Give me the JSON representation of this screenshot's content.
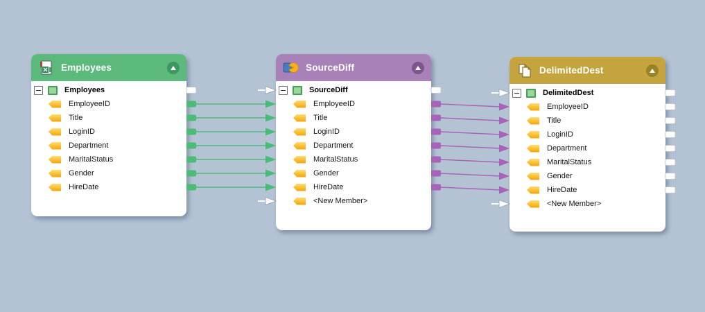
{
  "canvas": {
    "background_color": "#b4c3d4"
  },
  "components": [
    {
      "id": "employees",
      "title": "Employees",
      "icon": "excel-file-icon",
      "colors": {
        "header": "#5bb97b",
        "header_button": "#3f9663",
        "connector": "#49bd78"
      },
      "root_label": "Employees",
      "members": [
        "EmployeeID",
        "Title",
        "LoginID",
        "Department",
        "MaritalStatus",
        "Gender",
        "HireDate"
      ],
      "left_ports": [],
      "right_ports": [
        "white",
        "connected",
        "connected",
        "connected",
        "connected",
        "connected",
        "connected",
        "connected"
      ]
    },
    {
      "id": "sourcediff",
      "title": "SourceDiff",
      "icon": "diff-key-icon",
      "colors": {
        "header": "#a881b8",
        "header_button": "#7c5691",
        "connector": "#a863b8"
      },
      "root_label": "SourceDiff",
      "members": [
        "EmployeeID",
        "Title",
        "LoginID",
        "Department",
        "MaritalStatus",
        "Gender",
        "HireDate",
        "<New Member>"
      ],
      "left_ports": [
        "white-arrow",
        "connected",
        "connected",
        "connected",
        "connected",
        "connected",
        "connected",
        "connected",
        "white-arrow"
      ],
      "right_ports": [
        "white",
        "connected",
        "connected",
        "connected",
        "connected",
        "connected",
        "connected",
        "connected",
        "none"
      ]
    },
    {
      "id": "delimiteddest",
      "title": "DelimitedDest",
      "icon": "documents-icon",
      "colors": {
        "header": "#c5a43e",
        "header_button": "#9a8226",
        "connector": "#a863b8"
      },
      "root_label": "DelimitedDest",
      "members": [
        "EmployeeID",
        "Title",
        "LoginID",
        "Department",
        "MaritalStatus",
        "Gender",
        "HireDate",
        "<New Member>"
      ],
      "left_ports": [
        "white-arrow",
        "connected",
        "connected",
        "connected",
        "connected",
        "connected",
        "connected",
        "connected",
        "white-arrow"
      ],
      "right_ports": [
        "white",
        "white",
        "white",
        "white",
        "white",
        "white",
        "white",
        "white",
        "none"
      ]
    }
  ],
  "connections": [
    {
      "from": "employees",
      "to": "sourcediff",
      "color": "#49bd78",
      "pairs": [
        [
          1,
          1
        ],
        [
          2,
          2
        ],
        [
          3,
          3
        ],
        [
          4,
          4
        ],
        [
          5,
          5
        ],
        [
          6,
          6
        ],
        [
          7,
          7
        ]
      ]
    },
    {
      "from": "sourcediff",
      "to": "delimiteddest",
      "color": "#a863b8",
      "pairs": [
        [
          1,
          1
        ],
        [
          2,
          2
        ],
        [
          3,
          3
        ],
        [
          4,
          4
        ],
        [
          5,
          5
        ],
        [
          6,
          6
        ],
        [
          7,
          7
        ]
      ]
    }
  ]
}
